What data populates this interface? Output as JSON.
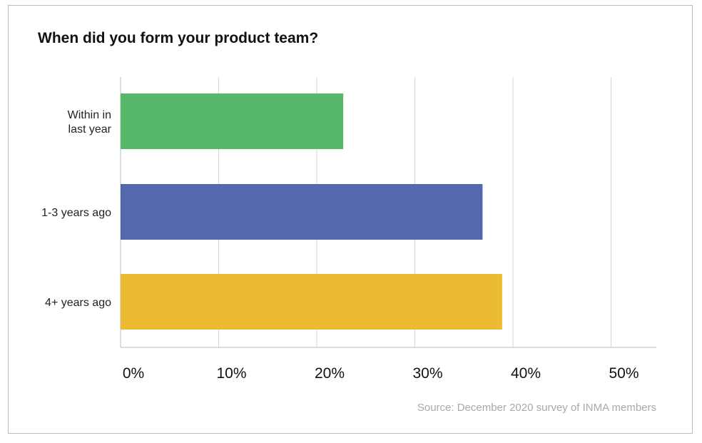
{
  "chart_data": {
    "type": "bar",
    "orientation": "horizontal",
    "title": "When did you form your product team?",
    "categories": [
      "Within in\nlast year",
      "1-3 years ago",
      "4+ years ago"
    ],
    "values": [
      22.7,
      36.9,
      38.9
    ],
    "unit": "%",
    "xlim": [
      0,
      55
    ],
    "xticks": [
      0,
      10,
      20,
      30,
      40,
      50
    ],
    "xtick_labels": [
      "0%",
      "10%",
      "20%",
      "30%",
      "40%",
      "50%"
    ],
    "xlabel": "",
    "ylabel": "",
    "grid": "vertical",
    "legend": "none",
    "bar_colors": [
      "#58b86a",
      "#5469ad",
      "#ebbb33"
    ],
    "source": "Source: December 2020 survey of INMA members"
  }
}
